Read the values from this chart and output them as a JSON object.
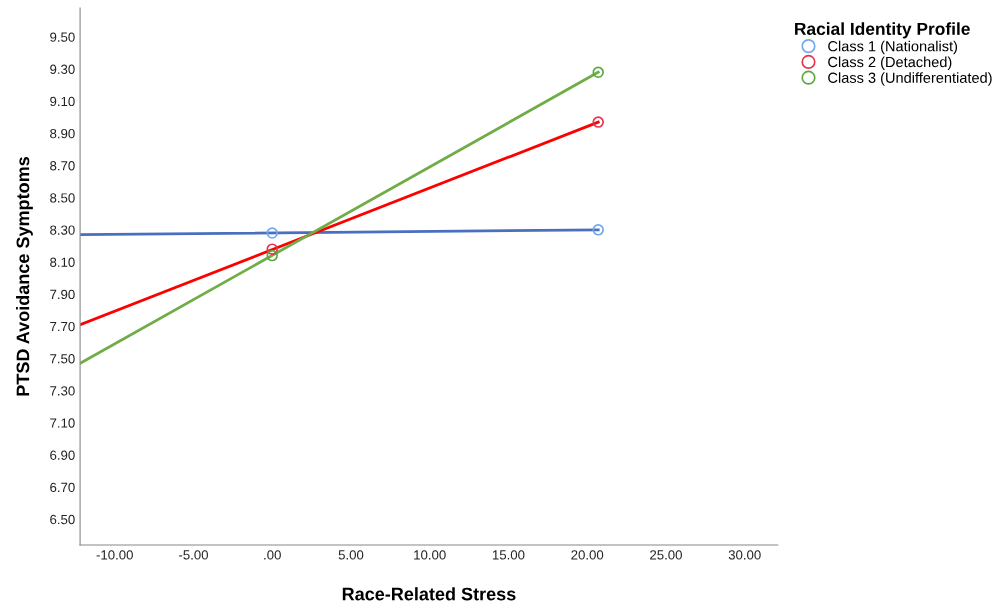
{
  "chart_data": {
    "type": "scatter",
    "xlabel": "Race-Related Stress",
    "ylabel": "PTSD Avoidance Symptoms",
    "legend_title": "Racial Identity Profile",
    "xlim": [
      -12.2,
      32.1
    ],
    "ylim": [
      6.34,
      9.68
    ],
    "xticks": [
      {
        "value": -10,
        "label": "-10.00"
      },
      {
        "value": -5,
        "label": "-5.00"
      },
      {
        "value": 0,
        "label": ".00"
      },
      {
        "value": 5,
        "label": "5.00"
      },
      {
        "value": 10,
        "label": "10.00"
      },
      {
        "value": 15,
        "label": "15.00"
      },
      {
        "value": 20,
        "label": "20.00"
      },
      {
        "value": 25,
        "label": "25.00"
      },
      {
        "value": 30,
        "label": "30.00"
      }
    ],
    "yticks": [
      {
        "value": 6.5,
        "label": "6.50"
      },
      {
        "value": 6.7,
        "label": "6.70"
      },
      {
        "value": 6.9,
        "label": "6.90"
      },
      {
        "value": 7.1,
        "label": "7.10"
      },
      {
        "value": 7.3,
        "label": "7.30"
      },
      {
        "value": 7.5,
        "label": "7.50"
      },
      {
        "value": 7.7,
        "label": "7.70"
      },
      {
        "value": 7.9,
        "label": "7.90"
      },
      {
        "value": 8.1,
        "label": "8.10"
      },
      {
        "value": 8.3,
        "label": "8.30"
      },
      {
        "value": 8.5,
        "label": "8.50"
      },
      {
        "value": 8.7,
        "label": "8.70"
      },
      {
        "value": 8.9,
        "label": "8.90"
      },
      {
        "value": 9.1,
        "label": "9.10"
      },
      {
        "value": 9.3,
        "label": "9.30"
      },
      {
        "value": 9.5,
        "label": "9.50"
      }
    ],
    "grid": false,
    "legend": "right",
    "marker": "circle",
    "series": [
      {
        "type": "line",
        "color": "#4a6fbf",
        "x": [
          -12.2,
          20.7
        ],
        "values": [
          8.27,
          8.3
        ],
        "marker": "none"
      },
      {
        "type": "line",
        "color": "#ff0000",
        "x": [
          -12.2,
          20.7
        ],
        "values": [
          7.71,
          8.97
        ],
        "marker": "none"
      },
      {
        "type": "line",
        "color": "#70ad47",
        "x": [
          -12.2,
          20.7
        ],
        "values": [
          7.47,
          9.28
        ],
        "marker": "none"
      },
      {
        "name": "Class 1 (Nationalist)",
        "color": "#6fa8f0",
        "x": [
          0,
          20.7
        ],
        "values": [
          8.28,
          8.3
        ]
      },
      {
        "name": "Class 2 (Detached)",
        "color": "#e8334f",
        "x": [
          0,
          20.7
        ],
        "values": [
          8.18,
          8.97
        ]
      },
      {
        "name": "Class 3 (Undifferentiated)",
        "color": "#5aa83c",
        "x": [
          0,
          20.7
        ],
        "values": [
          8.14,
          9.28
        ]
      }
    ]
  }
}
